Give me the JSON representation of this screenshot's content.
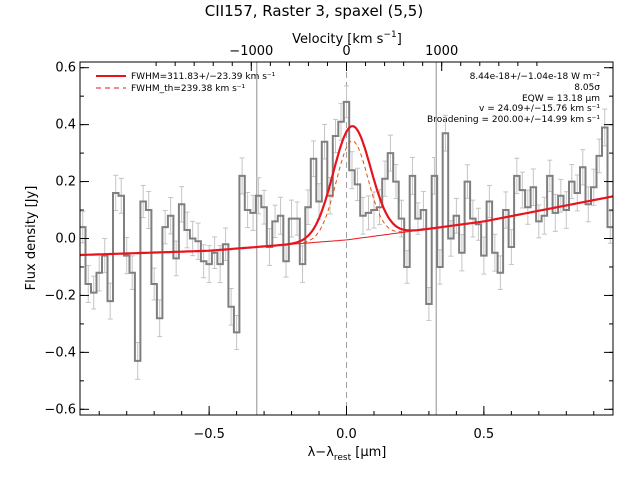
{
  "chart_data": {
    "type": "line",
    "title": "CII157, Raster 3, spaxel (5,5)",
    "xlabel": "λ-λ_rest [μm]",
    "xlabel_parts": {
      "main": "λ−λ",
      "sub": "rest",
      "unit": " [μm]"
    },
    "ylabel": "Flux density [Jy]",
    "top_xlabel": "Velocity [km s⁻¹]",
    "top_xlabel_parts": {
      "main": "Velocity [km s",
      "sup": "−1",
      "end": "]"
    },
    "xlim": [
      -0.97,
      0.97
    ],
    "ylim": [
      -0.62,
      0.62
    ],
    "xticks": [
      -0.5,
      0.0,
      0.5
    ],
    "xtick_labels": [
      "−0.5",
      "0.0",
      "0.5"
    ],
    "yticks": [
      -0.6,
      -0.4,
      -0.2,
      0.0,
      0.2,
      0.4,
      0.6
    ],
    "ytick_labels": [
      "−0.6",
      "−0.4",
      "−0.2",
      "0.0",
      "0.2",
      "0.4",
      "0.6"
    ],
    "top_ticks_um": [
      -0.3465,
      0.0,
      0.3465
    ],
    "top_tick_labels": [
      "−1000",
      "0",
      "1000"
    ],
    "vertical_lines_um": [
      -0.3265,
      0.3265
    ],
    "center_line_um": 0.0,
    "legend": [
      {
        "text": "FWHM=311.83+/−23.39 km s⁻¹",
        "color": "#e8131c",
        "style": "solid"
      },
      {
        "text": "FWHM_th=239.38 km s⁻¹",
        "color": "#e8131c",
        "style": "dashed"
      }
    ],
    "annotations": [
      "8.44e-18+/−1.04e-18 W m⁻²",
      "8.05σ",
      "EQW = 13.18 μm",
      "v = 24.09+/−15.76 km s⁻¹",
      "Broadening = 200.00+/−14.99 km s⁻¹"
    ],
    "series": [
      {
        "name": "Data",
        "color": "#808080",
        "style": "steps",
        "x": [
          -0.96,
          -0.94,
          -0.92,
          -0.9,
          -0.88,
          -0.86,
          -0.84,
          -0.82,
          -0.8,
          -0.78,
          -0.76,
          -0.74,
          -0.72,
          -0.7,
          -0.68,
          -0.66,
          -0.64,
          -0.62,
          -0.6,
          -0.58,
          -0.56,
          -0.54,
          -0.52,
          -0.5,
          -0.48,
          -0.46,
          -0.44,
          -0.42,
          -0.4,
          -0.38,
          -0.36,
          -0.34,
          -0.32,
          -0.3,
          -0.28,
          -0.26,
          -0.24,
          -0.22,
          -0.2,
          -0.18,
          -0.16,
          -0.14,
          -0.12,
          -0.1,
          -0.08,
          -0.06,
          -0.04,
          -0.02,
          0.0,
          0.02,
          0.04,
          0.06,
          0.08,
          0.1,
          0.12,
          0.14,
          0.16,
          0.18,
          0.2,
          0.22,
          0.24,
          0.26,
          0.28,
          0.3,
          0.32,
          0.34,
          0.36,
          0.38,
          0.4,
          0.42,
          0.44,
          0.46,
          0.48,
          0.5,
          0.52,
          0.54,
          0.56,
          0.58,
          0.6,
          0.62,
          0.64,
          0.66,
          0.68,
          0.7,
          0.72,
          0.74,
          0.76,
          0.78,
          0.8,
          0.82,
          0.84,
          0.86,
          0.88,
          0.9,
          0.92,
          0.94,
          0.96
        ],
        "y": [
          0.04,
          -0.16,
          -0.19,
          -0.12,
          -0.06,
          -0.22,
          0.16,
          0.15,
          -0.06,
          -0.12,
          -0.43,
          0.13,
          0.1,
          -0.16,
          -0.28,
          0.04,
          0.08,
          -0.07,
          0.12,
          0.03,
          0.0,
          -0.01,
          -0.08,
          -0.09,
          -0.05,
          -0.09,
          -0.02,
          -0.24,
          -0.33,
          0.22,
          0.1,
          0.09,
          0.15,
          0.11,
          -0.03,
          0.06,
          0.08,
          -0.08,
          0.07,
          0.07,
          -0.09,
          0.11,
          0.28,
          0.13,
          0.34,
          0.15,
          0.36,
          0.41,
          0.48,
          0.24,
          0.19,
          0.08,
          0.09,
          0.1,
          0.11,
          0.21,
          0.3,
          0.2,
          0.07,
          -0.1,
          0.22,
          0.07,
          0.1,
          -0.23,
          0.22,
          -0.1,
          0.37,
          0.0,
          0.08,
          -0.05,
          0.2,
          0.07,
          0.05,
          -0.06,
          0.13,
          -0.05,
          -0.12,
          0.1,
          -0.03,
          0.22,
          0.17,
          0.11,
          0.18,
          0.06,
          0.08,
          0.22,
          0.09,
          0.15,
          0.1,
          0.2,
          0.16,
          0.25,
          0.12,
          0.18,
          0.29,
          0.39,
          0.04
        ]
      },
      {
        "name": "Gaussian fit",
        "color": "#e8131c",
        "style": "solid",
        "model": {
          "baseline_x": [
            -0.97,
            -0.5,
            0.0,
            0.5,
            0.97
          ],
          "baseline_y": [
            -0.058,
            -0.043,
            -0.005,
            0.06,
            0.148
          ],
          "center": 0.02,
          "amplitude": 0.397,
          "sigma": 0.068
        }
      },
      {
        "name": "Instrumental profile",
        "color": "#e8131c",
        "style": "dashed",
        "model": {
          "center": 0.02,
          "amplitude": 0.345,
          "sigma": 0.057
        }
      }
    ]
  }
}
